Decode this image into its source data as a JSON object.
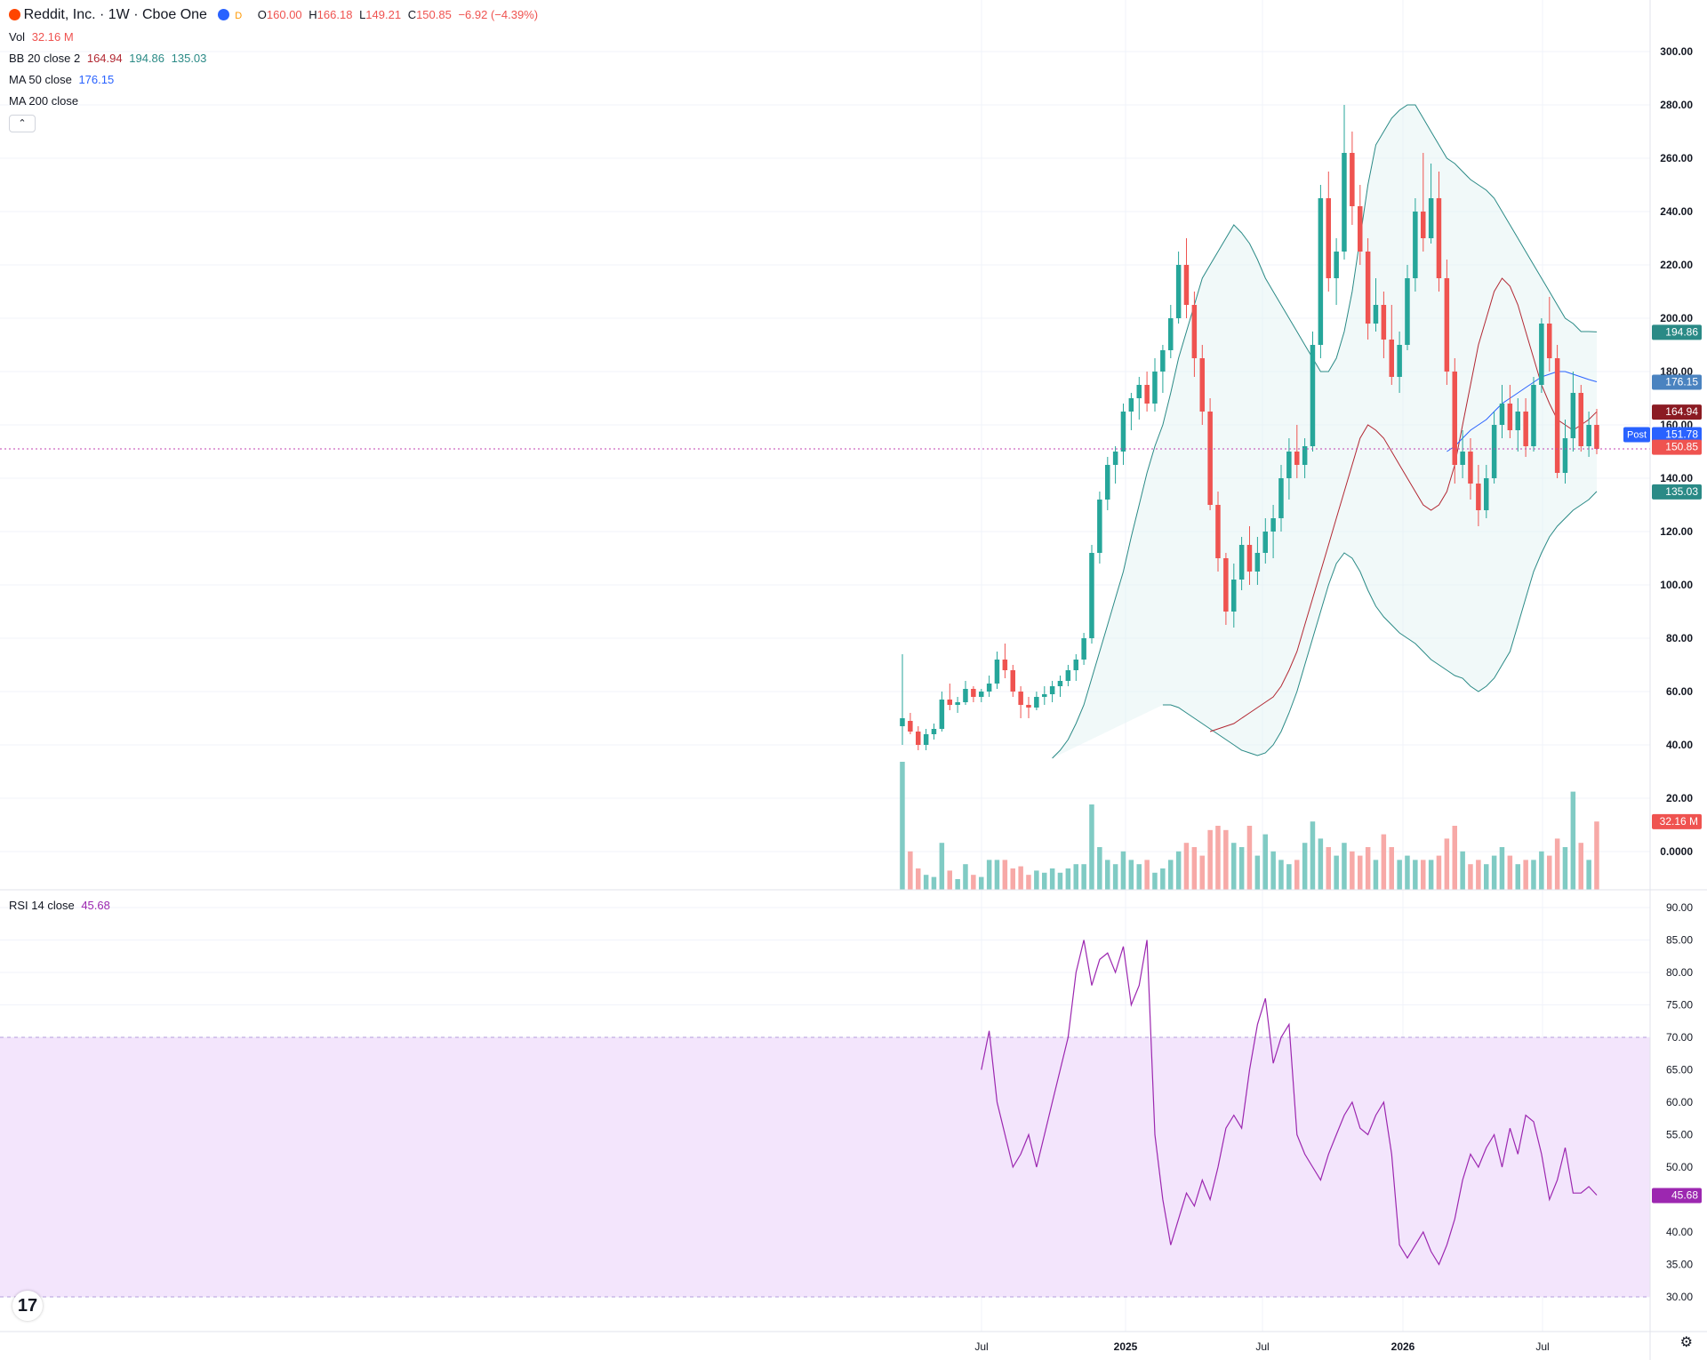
{
  "header": {
    "symbol": "Reddit, Inc. · 1W · Cboe One",
    "open_label": "O",
    "open": "160.00",
    "high_label": "H",
    "high": "166.18",
    "low_label": "L",
    "low": "149.21",
    "close_label": "C",
    "close": "150.85",
    "change": "−6.92 (−4.39%)",
    "exchange_badge": "D"
  },
  "indicators": {
    "vol_label": "Vol",
    "vol_value": "32.16 M",
    "bb_label": "BB 20 close 2",
    "bb_basis": "164.94",
    "bb_upper": "194.86",
    "bb_lower": "135.03",
    "ma50_label": "MA 50 close",
    "ma50_value": "176.15",
    "ma200_label": "MA 200 close",
    "rsi_label": "RSI 14 close",
    "rsi_value": "45.68"
  },
  "colors": {
    "up": "#26a69a",
    "down": "#ef5350",
    "bb_basis": "#b22833",
    "bb_band": "#2a8a86",
    "ma50": "#2962ff",
    "rsi": "#9c27b0"
  },
  "price_badges": {
    "upper": "194.86",
    "ma50": "176.15",
    "basis": "164.94",
    "post_label": "Post",
    "post": "151.78",
    "last": "150.85",
    "lower": "135.03",
    "volume": "32.16 M",
    "rsi": "45.68"
  },
  "chart_data": {
    "type": "candlestick",
    "interval": "1W",
    "ylim": [
      0,
      300
    ],
    "y_ticks": [
      "300.00",
      "280.00",
      "260.00",
      "240.00",
      "220.00",
      "200.00",
      "180.00",
      "160.00",
      "140.00",
      "120.00",
      "100.00",
      "80.00",
      "60.00",
      "40.00",
      "20.00",
      "0.0000"
    ],
    "x_ticks": [
      "Jul",
      "2025",
      "Jul",
      "2026",
      "Jul"
    ],
    "rsi_ylim": [
      30,
      90
    ],
    "rsi_ticks": [
      "90.00",
      "85.00",
      "80.00",
      "75.00",
      "70.00",
      "65.00",
      "60.00",
      "55.00",
      "50.00",
      "45.00",
      "40.00",
      "35.00",
      "30.00"
    ],
    "rsi_band": [
      30,
      70
    ],
    "candles": [
      [
        47,
        74,
        40,
        50,
        60
      ],
      [
        49,
        52,
        44,
        45,
        18
      ],
      [
        45,
        47,
        38,
        40,
        10
      ],
      [
        40,
        46,
        38,
        44,
        7
      ],
      [
        44,
        48,
        42,
        46,
        6
      ],
      [
        46,
        60,
        45,
        57,
        22
      ],
      [
        57,
        63,
        53,
        55,
        9
      ],
      [
        55,
        58,
        52,
        56,
        5
      ],
      [
        56,
        64,
        55,
        61,
        12
      ],
      [
        61,
        62,
        56,
        58,
        7
      ],
      [
        58,
        61,
        56,
        60,
        6
      ],
      [
        60,
        66,
        58,
        63,
        14
      ],
      [
        63,
        75,
        61,
        72,
        14
      ],
      [
        72,
        78,
        65,
        68,
        14
      ],
      [
        68,
        70,
        58,
        60,
        10
      ],
      [
        60,
        62,
        50,
        55,
        11
      ],
      [
        55,
        58,
        50,
        54,
        7
      ],
      [
        54,
        60,
        53,
        58,
        9
      ],
      [
        58,
        62,
        55,
        59,
        8
      ],
      [
        59,
        64,
        56,
        62,
        10
      ],
      [
        62,
        66,
        58,
        64,
        8
      ],
      [
        64,
        70,
        62,
        68,
        10
      ],
      [
        68,
        74,
        64,
        72,
        12
      ],
      [
        72,
        82,
        70,
        80,
        12
      ],
      [
        80,
        115,
        78,
        112,
        40
      ],
      [
        112,
        135,
        108,
        132,
        20
      ],
      [
        132,
        148,
        128,
        145,
        14
      ],
      [
        145,
        152,
        138,
        150,
        12
      ],
      [
        150,
        168,
        145,
        165,
        18
      ],
      [
        165,
        172,
        158,
        170,
        14
      ],
      [
        170,
        178,
        162,
        175,
        12
      ],
      [
        175,
        180,
        165,
        168,
        14
      ],
      [
        168,
        185,
        165,
        180,
        8
      ],
      [
        180,
        190,
        172,
        188,
        10
      ],
      [
        188,
        205,
        185,
        200,
        14
      ],
      [
        200,
        225,
        198,
        220,
        18
      ],
      [
        220,
        230,
        200,
        205,
        22
      ],
      [
        205,
        210,
        178,
        185,
        20
      ],
      [
        185,
        190,
        160,
        165,
        16
      ],
      [
        165,
        170,
        128,
        130,
        28
      ],
      [
        130,
        135,
        105,
        110,
        30
      ],
      [
        110,
        112,
        85,
        90,
        28
      ],
      [
        90,
        108,
        84,
        102,
        22
      ],
      [
        102,
        118,
        98,
        115,
        20
      ],
      [
        115,
        122,
        100,
        105,
        30
      ],
      [
        105,
        118,
        100,
        112,
        16
      ],
      [
        112,
        125,
        108,
        120,
        26
      ],
      [
        120,
        130,
        110,
        125,
        18
      ],
      [
        125,
        145,
        120,
        140,
        14
      ],
      [
        140,
        155,
        132,
        150,
        12
      ],
      [
        150,
        160,
        140,
        145,
        14
      ],
      [
        145,
        155,
        140,
        152,
        22
      ],
      [
        152,
        195,
        150,
        190,
        32
      ],
      [
        190,
        250,
        185,
        245,
        24
      ],
      [
        245,
        255,
        210,
        215,
        20
      ],
      [
        215,
        230,
        205,
        225,
        16
      ],
      [
        225,
        280,
        222,
        262,
        22
      ],
      [
        262,
        270,
        235,
        242,
        18
      ],
      [
        242,
        250,
        220,
        225,
        16
      ],
      [
        225,
        230,
        192,
        198,
        20
      ],
      [
        198,
        215,
        195,
        205,
        14
      ],
      [
        205,
        210,
        185,
        192,
        26
      ],
      [
        192,
        205,
        175,
        178,
        20
      ],
      [
        178,
        195,
        172,
        190,
        14
      ],
      [
        190,
        220,
        188,
        215,
        16
      ],
      [
        215,
        245,
        210,
        240,
        14
      ],
      [
        240,
        262,
        225,
        230,
        14
      ],
      [
        230,
        258,
        228,
        245,
        14
      ],
      [
        245,
        255,
        210,
        215,
        16
      ],
      [
        215,
        222,
        175,
        180,
        24
      ],
      [
        180,
        185,
        138,
        145,
        30
      ],
      [
        145,
        158,
        140,
        150,
        18
      ],
      [
        150,
        155,
        132,
        138,
        12
      ],
      [
        138,
        145,
        122,
        128,
        14
      ],
      [
        128,
        145,
        125,
        140,
        12
      ],
      [
        140,
        165,
        138,
        160,
        16
      ],
      [
        160,
        175,
        155,
        168,
        20
      ],
      [
        168,
        175,
        155,
        158,
        16
      ],
      [
        158,
        170,
        150,
        165,
        12
      ],
      [
        165,
        170,
        148,
        152,
        14
      ],
      [
        152,
        178,
        150,
        175,
        14
      ],
      [
        175,
        200,
        172,
        198,
        18
      ],
      [
        198,
        208,
        180,
        185,
        16
      ],
      [
        185,
        190,
        140,
        142,
        24
      ],
      [
        142,
        162,
        138,
        155,
        20
      ],
      [
        155,
        180,
        150,
        172,
        46
      ],
      [
        172,
        175,
        150,
        152,
        22
      ],
      [
        152,
        165,
        148,
        160,
        14
      ],
      [
        160,
        166,
        149,
        151,
        32
      ]
    ],
    "bb_upper": [
      35,
      38,
      42,
      48,
      55,
      65,
      75,
      85,
      95,
      105,
      118,
      130,
      142,
      152,
      160,
      172,
      185,
      195,
      205,
      215,
      220,
      225,
      230,
      235,
      232,
      228,
      222,
      215,
      210,
      205,
      200,
      195,
      190,
      185,
      180,
      180,
      185,
      195,
      210,
      230,
      250,
      265,
      270,
      275,
      278,
      280,
      280,
      275,
      270,
      265,
      260,
      258,
      255,
      252,
      250,
      248,
      245,
      240,
      235,
      230,
      225,
      220,
      215,
      210,
      205,
      200,
      198,
      195,
      195,
      194.86
    ],
    "bb_lower": [
      55,
      55,
      54,
      52,
      50,
      48,
      46,
      44,
      42,
      40,
      38,
      37,
      36,
      37,
      40,
      45,
      52,
      60,
      70,
      80,
      90,
      100,
      108,
      112,
      110,
      105,
      98,
      92,
      88,
      85,
      82,
      80,
      78,
      75,
      72,
      70,
      68,
      66,
      65,
      62,
      60,
      62,
      65,
      70,
      75,
      85,
      95,
      105,
      112,
      118,
      122,
      125,
      128,
      130,
      132,
      135.03
    ],
    "bb_basis": [
      45,
      46,
      47,
      48,
      50,
      52,
      54,
      56,
      58,
      62,
      68,
      75,
      85,
      95,
      105,
      115,
      125,
      135,
      145,
      155,
      160,
      158,
      155,
      150,
      145,
      140,
      135,
      130,
      128,
      130,
      135,
      145,
      160,
      175,
      190,
      200,
      210,
      215,
      212,
      205,
      195,
      185,
      175,
      168,
      162,
      160,
      158,
      160,
      162,
      164.94
    ],
    "ma50": [
      150,
      152,
      155,
      158,
      160,
      162,
      165,
      168,
      170,
      172,
      174,
      176,
      178,
      179,
      180,
      180,
      179,
      178,
      177,
      176.15
    ],
    "rsi": [
      65,
      71,
      60,
      55,
      50,
      52,
      55,
      50,
      55,
      60,
      65,
      70,
      80,
      85,
      78,
      82,
      83,
      80,
      84,
      75,
      78,
      85,
      55,
      45,
      38,
      42,
      46,
      44,
      48,
      45,
      50,
      56,
      58,
      56,
      65,
      72,
      76,
      66,
      70,
      72,
      55,
      52,
      50,
      48,
      52,
      55,
      58,
      60,
      56,
      55,
      58,
      60,
      52,
      38,
      36,
      38,
      40,
      37,
      35,
      38,
      42,
      48,
      52,
      50,
      53,
      55,
      50,
      56,
      52,
      58,
      57,
      52,
      45,
      48,
      53,
      46,
      46,
      47,
      45.68
    ]
  }
}
